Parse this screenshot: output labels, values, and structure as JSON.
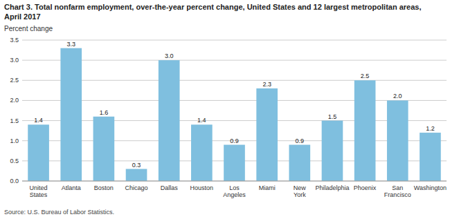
{
  "chart_data": {
    "type": "bar",
    "title": "Chart 3. Total nonfarm employment, over-the-year percent change, United States and 12 largest metropolitan areas,",
    "subtitle": "April 2017",
    "ylabel": "Percent change",
    "source": "Source: U.S. Bureau of Labor Statistics.",
    "categories": [
      "United\nStates",
      "Atlanta",
      "Boston",
      "Chicago",
      "Dallas",
      "Houston",
      "Los\nAngeles",
      "Miami",
      "New\nYork",
      "Philadelphia",
      "Phoenix",
      "San\nFrancisco",
      "Washington"
    ],
    "values": [
      1.4,
      3.3,
      1.6,
      0.3,
      3.0,
      1.4,
      0.9,
      2.3,
      0.9,
      1.5,
      2.5,
      2.0,
      1.2
    ],
    "value_labels": [
      "1.4",
      "3.3",
      "1.6",
      "0.3",
      "3.0",
      "1.4",
      "0.9",
      "2.3",
      "0.9",
      "1.5",
      "2.5",
      "2.0",
      "1.2"
    ],
    "color": "#7fbfdf",
    "ylim": [
      0,
      3.5
    ],
    "yticks": [
      {
        "value": 0.0,
        "label": "0.0"
      },
      0.5,
      {
        "value": 1.0,
        "label": "1.0"
      },
      1.5,
      {
        "value": 2.0,
        "label": "2.0"
      },
      2.5,
      {
        "value": 3.0,
        "label": "3.0"
      },
      3.5
    ],
    "grid": true,
    "data_labels": true
  }
}
